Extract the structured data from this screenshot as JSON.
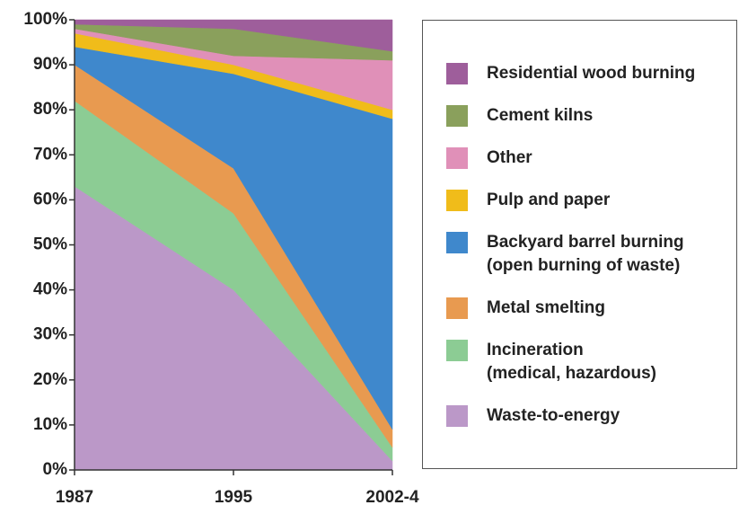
{
  "chart_data": {
    "type": "stacked_area",
    "categories": [
      "1987",
      "1995",
      "2002-4"
    ],
    "series": [
      {
        "name": "Waste-to-energy",
        "color": "#bb98c8",
        "values": [
          63,
          40,
          2
        ]
      },
      {
        "name": "Incineration\n(medical, hazardous)",
        "color": "#8ccc94",
        "values": [
          19,
          17,
          3
        ]
      },
      {
        "name": "Metal smelting",
        "color": "#e89a50",
        "values": [
          8,
          10,
          4
        ]
      },
      {
        "name": "Backyard barrel burning\n(open burning of waste)",
        "color": "#3f88cc",
        "values": [
          4,
          21,
          69
        ]
      },
      {
        "name": "Pulp and paper",
        "color": "#f0bc1a",
        "values": [
          3,
          2,
          2
        ]
      },
      {
        "name": "Other",
        "color": "#e090b8",
        "values": [
          1,
          2,
          11
        ]
      },
      {
        "name": "Cement kilns",
        "color": "#8aa05c",
        "values": [
          1,
          6,
          2
        ]
      },
      {
        "name": "Residential wood burning",
        "color": "#9e5e9b",
        "values": [
          1,
          2,
          7
        ]
      }
    ],
    "ylim": [
      0,
      100
    ],
    "yticks": [
      {
        "value": 0,
        "label": "0%"
      },
      {
        "value": 10,
        "label": "10%"
      },
      {
        "value": 20,
        "label": "20%"
      },
      {
        "value": 30,
        "label": "30%"
      },
      {
        "value": 40,
        "label": "40%"
      },
      {
        "value": 50,
        "label": "50%"
      },
      {
        "value": 60,
        "label": "60%"
      },
      {
        "value": 70,
        "label": "70%"
      },
      {
        "value": 80,
        "label": "80%"
      },
      {
        "value": 90,
        "label": "90%"
      },
      {
        "value": 100,
        "label": "100%"
      }
    ]
  }
}
